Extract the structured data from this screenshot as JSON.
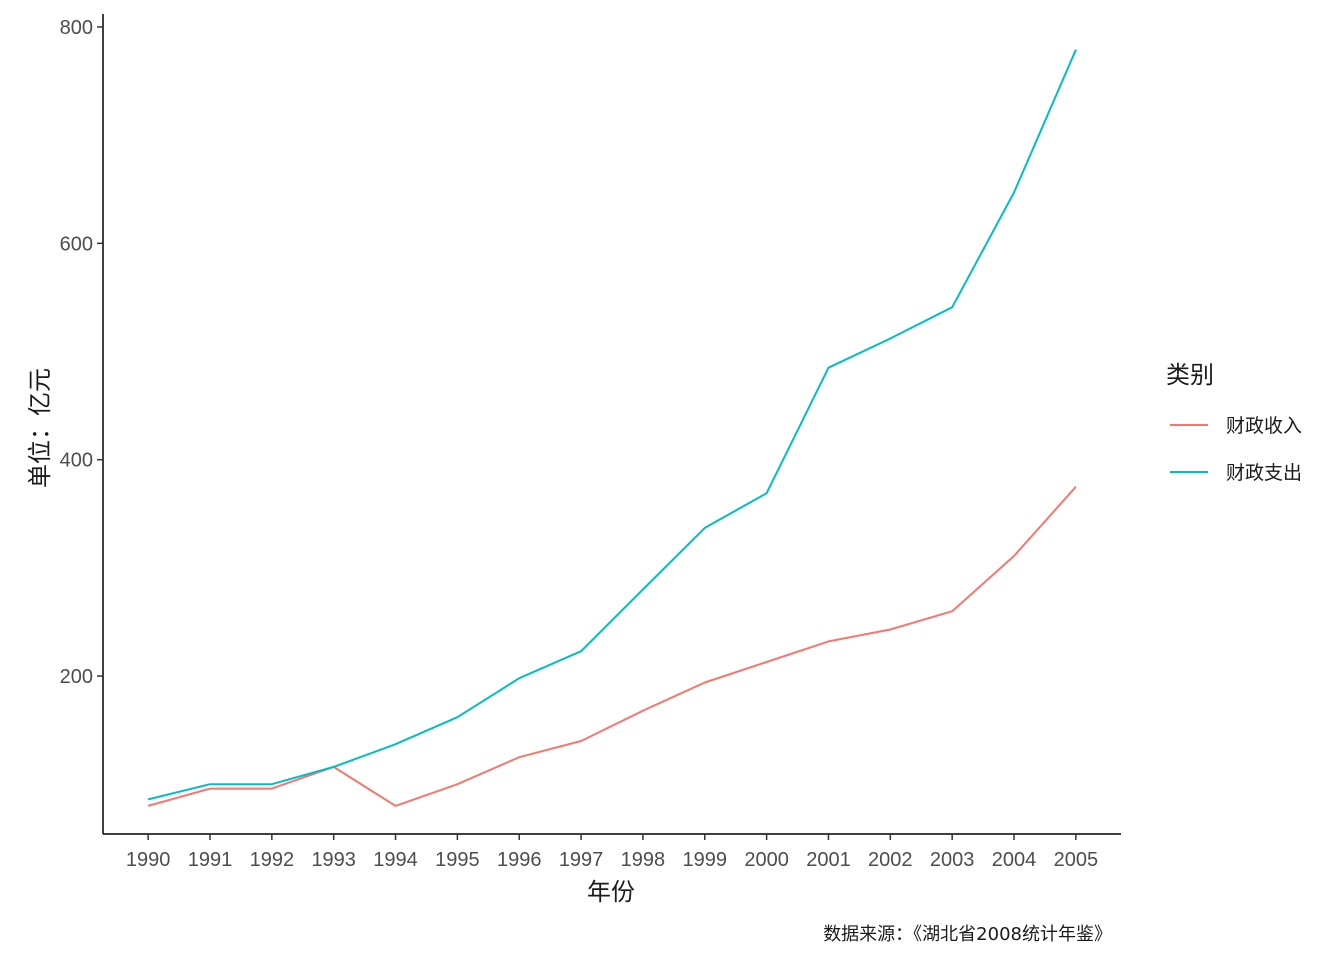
{
  "chart_data": {
    "type": "line",
    "xlabel": "年份",
    "ylabel": "单位：亿元",
    "caption": "数据来源：《湖北省2008统计年鉴》",
    "legend_title": "类别",
    "legend_position": "right",
    "grid": false,
    "x": [
      1990,
      1991,
      1992,
      1993,
      1994,
      1995,
      1996,
      1997,
      1998,
      1999,
      2000,
      2001,
      2002,
      2003,
      2004,
      2005
    ],
    "x_tick_labels": [
      "1990",
      "1991",
      "1992",
      "1993",
      "1994",
      "1995",
      "1996",
      "1997",
      "1998",
      "1999",
      "2000",
      "2001",
      "2002",
      "2003",
      "2004",
      "2005"
    ],
    "y_ticks": [
      200,
      400,
      600,
      800
    ],
    "y_tick_labels": [
      "200",
      "400",
      "600",
      "800"
    ],
    "ylim": [
      54,
      812
    ],
    "series": [
      {
        "name": "财政收入",
        "color": "#F8766D",
        "values": [
          80,
          96,
          96,
          116,
          80,
          100,
          125,
          140,
          168,
          194,
          213,
          232,
          243,
          260,
          311,
          375
        ]
      },
      {
        "name": "财政支出",
        "color": "#00BFC4",
        "values": [
          86,
          100,
          100,
          116,
          137,
          162,
          198,
          223,
          280,
          337,
          369,
          485,
          512,
          541,
          647,
          779
        ]
      }
    ]
  }
}
